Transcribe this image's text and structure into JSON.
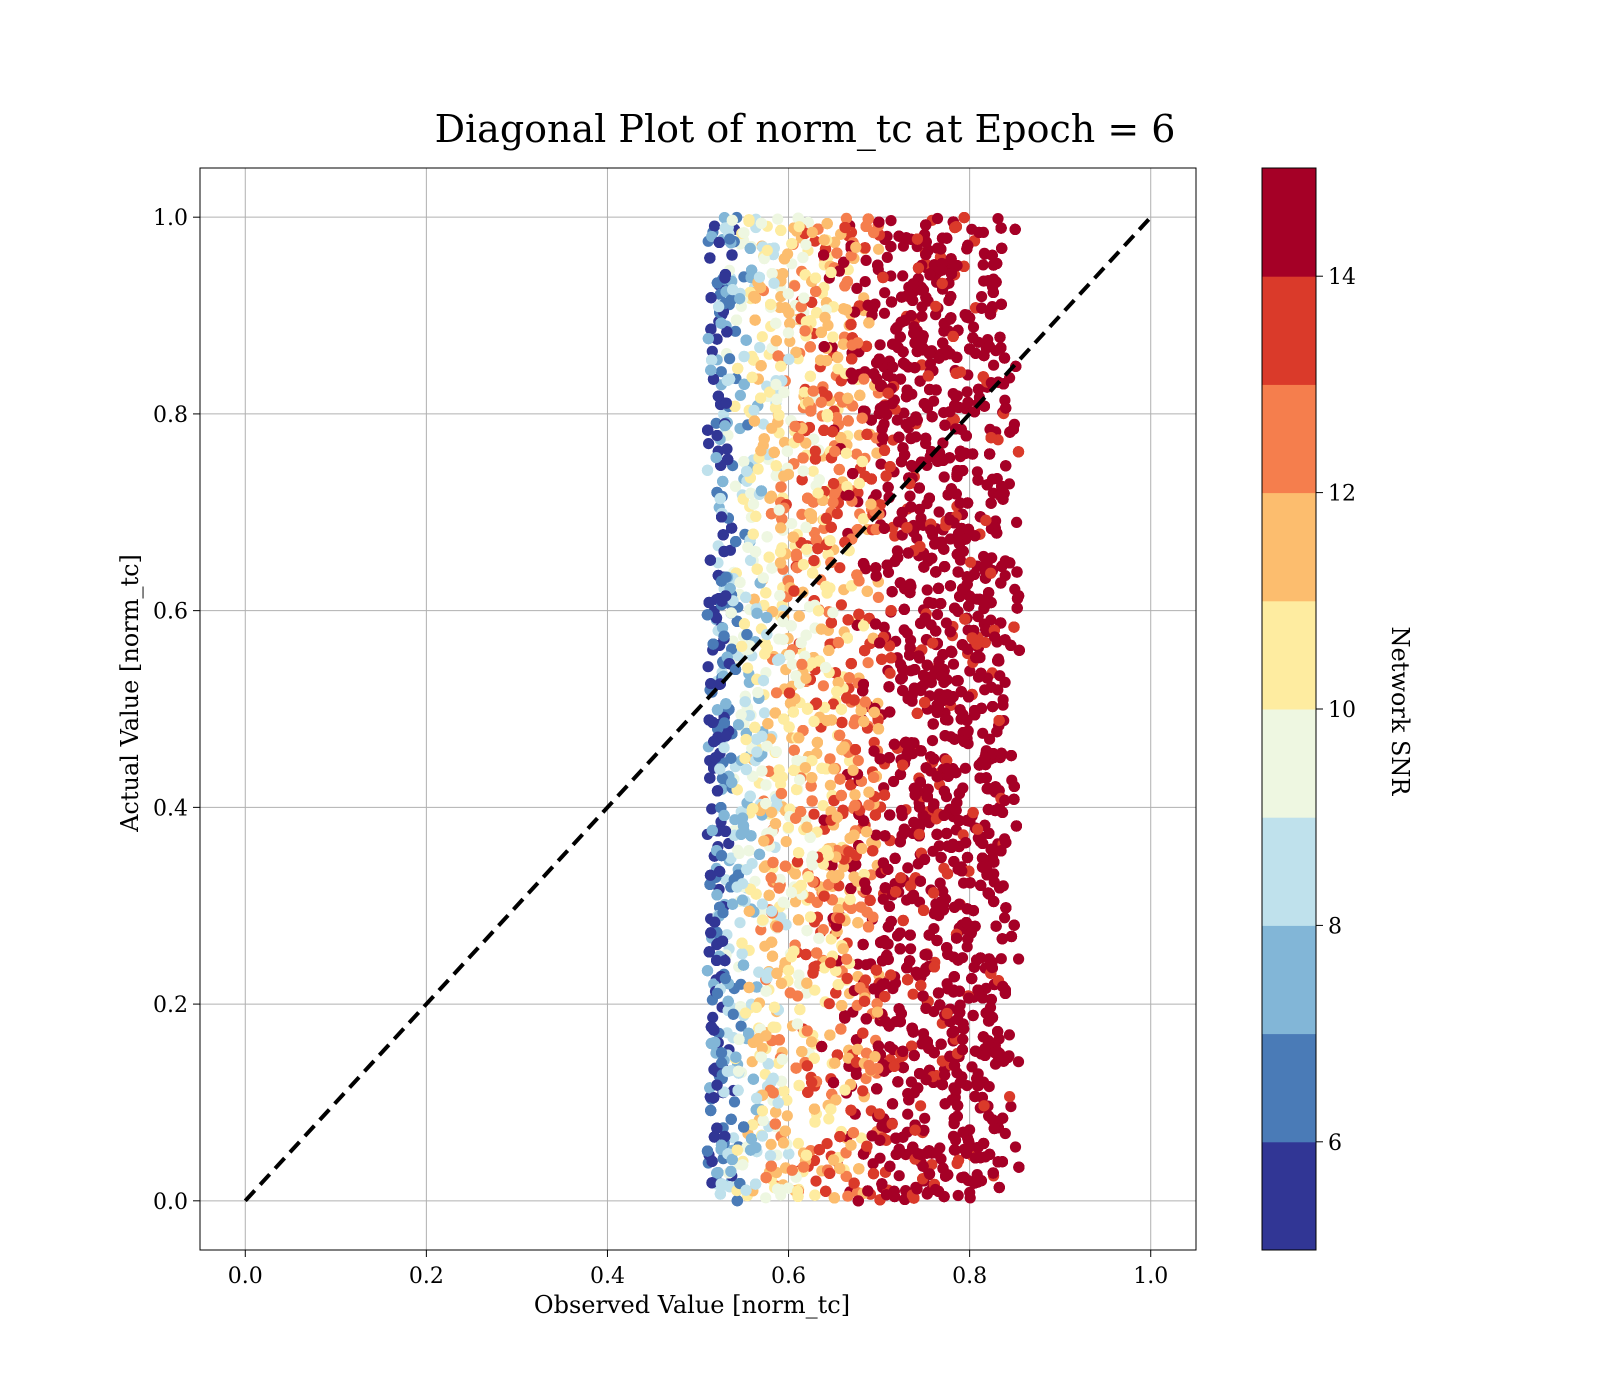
{
  "chart_data": {
    "type": "scatter",
    "title": "Diagonal Plot of norm_tc at Epoch = 6",
    "xlabel": "Observed Value [norm_tc]",
    "ylabel": "Actual Value [norm_tc]",
    "xlim": [
      -0.05,
      1.05
    ],
    "ylim": [
      -0.05,
      1.05
    ],
    "xticks": [
      "0.0",
      "0.2",
      "0.4",
      "0.6",
      "0.8",
      "1.0"
    ],
    "yticks": [
      "0.0",
      "0.2",
      "0.4",
      "0.6",
      "0.8",
      "1.0"
    ],
    "grid": true,
    "reference_line": {
      "from": [
        0.0,
        0.0
      ],
      "to": [
        1.0,
        1.0
      ],
      "style": "dashed",
      "color": "#000000"
    },
    "scatter_extent": {
      "x": [
        0.51,
        0.855
      ],
      "y": [
        0.0,
        1.0
      ]
    },
    "snr_vs_x": [
      {
        "x": 0.52,
        "snr": 6
      },
      {
        "x": 0.54,
        "snr": 8
      },
      {
        "x": 0.56,
        "snr": 9.5
      },
      {
        "x": 0.6,
        "snr": 11
      },
      {
        "x": 0.66,
        "snr": 12.5
      },
      {
        "x": 0.72,
        "snr": 14
      },
      {
        "x": 0.8,
        "snr": 15
      }
    ],
    "colorbar": {
      "label": "Network SNR",
      "range": [
        5,
        15
      ],
      "ticks": [
        "6",
        "8",
        "10",
        "12",
        "14"
      ],
      "bins": [
        {
          "from": 5,
          "to": 6,
          "color": "#313695"
        },
        {
          "from": 6,
          "to": 7,
          "color": "#4a7bb7"
        },
        {
          "from": 7,
          "to": 8,
          "color": "#82b6d7"
        },
        {
          "from": 8,
          "to": 9,
          "color": "#bfe1ec"
        },
        {
          "from": 9,
          "to": 10,
          "color": "#eef7e1"
        },
        {
          "from": 10,
          "to": 11,
          "color": "#feeca0"
        },
        {
          "from": 11,
          "to": 12,
          "color": "#fcbd6e"
        },
        {
          "from": 12,
          "to": 13,
          "color": "#f57e4d"
        },
        {
          "from": 13,
          "to": 14,
          "color": "#da3a2a"
        },
        {
          "from": 14,
          "to": 15,
          "color": "#a50026"
        }
      ]
    }
  }
}
